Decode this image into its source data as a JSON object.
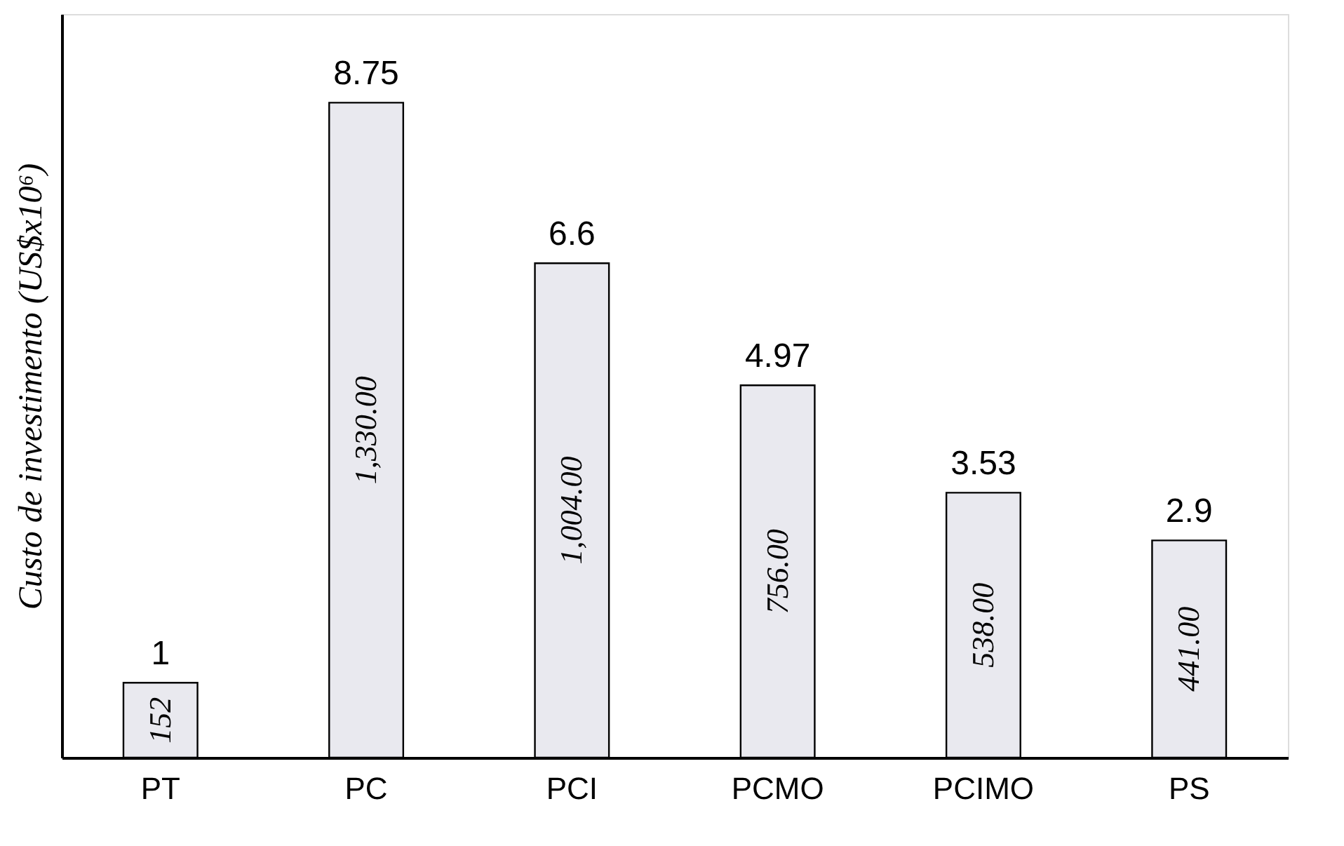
{
  "chart_data": {
    "type": "bar",
    "ylabel": "Custo de investimento  (US$x10⁶)",
    "categories": [
      "PT",
      "PC",
      "PCI",
      "PCMO",
      "PCIMO",
      "PS"
    ],
    "values": [
      152,
      1330,
      1004,
      756,
      538,
      441
    ],
    "value_labels": [
      "152",
      "1,330.00",
      "1,004.00",
      "756.00",
      "538.00",
      "441.00"
    ],
    "color": "#e9e9ef",
    "ylim": [
      0,
      1510
    ],
    "tick_labels": "x",
    "grid": false,
    "annotations": [
      {
        "text": "1",
        "x": "PT",
        "y": 152
      },
      {
        "text": "8.75",
        "x": "PC",
        "y": 1330
      },
      {
        "text": "6.6",
        "x": "PCI",
        "y": 1004
      },
      {
        "text": "4.97",
        "x": "PCMO",
        "y": 756
      },
      {
        "text": "3.53",
        "x": "PCIMO",
        "y": 538
      },
      {
        "text": "2.9",
        "x": "PS",
        "y": 441
      }
    ]
  }
}
